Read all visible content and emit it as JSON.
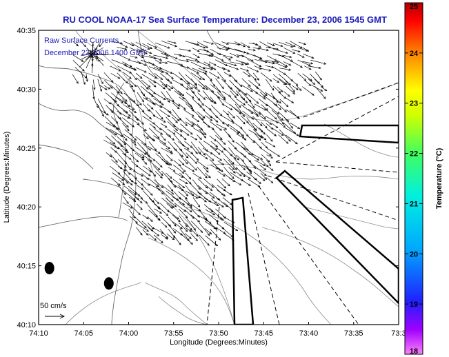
{
  "title": "RU COOL  NOAA-17  Sea Surface Temperature:  December 23, 2006 1545 GMT",
  "annotations": {
    "line1": "Raw Surface Currents",
    "line2": "December 23 2006 1400 GMT"
  },
  "scale_label": "50 cm/s",
  "colors": {
    "title": "#1a1ab8",
    "frame": "#000000",
    "background": "#ffffff"
  },
  "chart_data": {
    "type": "quiver",
    "title": "RU COOL  NOAA-17  Sea Surface Temperature:  December 23, 2006 1545 GMT",
    "xlabel": "Longitude (Degrees:Minutes)",
    "ylabel": "Latitude (Degrees:Minutes)",
    "x_ticks": [
      "74:10",
      "74:05",
      "74:00",
      "73:55",
      "73:50",
      "73:45",
      "73:40",
      "73:35",
      "73:3"
    ],
    "y_ticks": [
      "40:35",
      "40:30",
      "40:25",
      "40:20",
      "40:15",
      "40:10"
    ],
    "xlim_minutes_west": [
      70,
      30
    ],
    "ylim_minutes_north": [
      10,
      35
    ],
    "grid": false,
    "vectors_description": "surface current vectors over New York Bight apex, predominantly flowing southeast offshore and converging at the Hudson River mouth",
    "vector_field_region": {
      "lon_west_min": [
        33,
        65
      ],
      "lat_north_min": [
        17.5,
        34
      ]
    },
    "reference_vector_cm_s": 50,
    "colorbar": {
      "label": "Temperature (°C)",
      "ticks": [
        25,
        24,
        23,
        22,
        21,
        20,
        19,
        18
      ],
      "range": [
        18,
        25
      ],
      "colormap": "jet"
    },
    "filled_markers": [
      {
        "lon_west_min": 68.8,
        "lat_north_min": 14.8
      },
      {
        "lon_west_min": 62.2,
        "lat_north_min": 13.5
      }
    ]
  }
}
